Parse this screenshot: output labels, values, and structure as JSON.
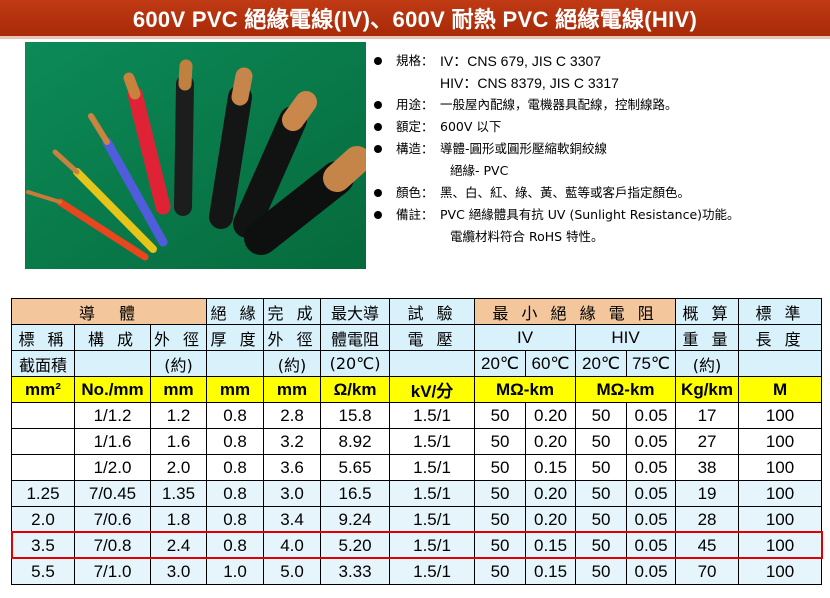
{
  "title": "600V PVC 絕緣電線(IV)、600V  耐熱 PVC 絕緣電線(HIV)",
  "specs": [
    {
      "key": "規格：",
      "value": "IV：CNS 679, JIS C 3307"
    },
    {
      "key": "",
      "value": "HIV：CNS 8379, JIS C 3317"
    },
    {
      "key": "用途：",
      "value": "一般屋內配線，電機器具配線，控制線路。"
    },
    {
      "key": "額定：",
      "value": "600V 以下"
    },
    {
      "key": "構造：",
      "value": "導體-圓形或圓形壓縮軟銅絞線"
    },
    {
      "key": "",
      "value": "絕緣- PVC"
    },
    {
      "key": "顏色：",
      "value": "黑、白、紅、綠、黃、藍等或客戶指定顏色。"
    },
    {
      "key": "備註：",
      "value": "PVC 絕緣體具有抗 UV (Sunlight Resistance)功能。"
    },
    {
      "key": "",
      "value": "電纜材料符合 RoHS 特性。"
    }
  ],
  "table": {
    "h_conductor": "導　體",
    "h_insulation": "絕 緣",
    "h_finished": "完 成",
    "h_maxcond": "最大導",
    "h_test": "試 驗",
    "h_minres": "最 小 絕 緣 電 阻",
    "h_weight": "概 算",
    "h_length": "標 準",
    "h_nominal": "標 稱",
    "h_construct": "構 成",
    "h_od": "外 徑",
    "h_thickness": "厚 度",
    "h_finished_od": "外 徑",
    "h_res20": "體電阻",
    "h_voltage": "電 壓",
    "h_iv": "IV",
    "h_hiv": "HIV",
    "h_weight2": "重 量",
    "h_length2": "長 度",
    "h_area": "截面積",
    "h_approx1": "(約)",
    "h_approx2": "(約)",
    "h_20c": "(20℃)",
    "h_iv20": "20℃",
    "h_iv60": "60℃",
    "h_hiv20": "20℃",
    "h_hiv75": "75℃",
    "h_approx3": "(約)",
    "units": [
      "mm²",
      "No./mm",
      "mm",
      "mm",
      "mm",
      "Ω/km",
      "kV/分",
      "MΩ-km",
      "MΩ-km",
      "Kg/km",
      "M"
    ],
    "rows": [
      [
        "",
        "1/1.2",
        "1.2",
        "0.8",
        "2.8",
        "15.8",
        "1.5/1",
        "50",
        "0.20",
        "50",
        "0.05",
        "17",
        "100"
      ],
      [
        "",
        "1/1.6",
        "1.6",
        "0.8",
        "3.2",
        "8.92",
        "1.5/1",
        "50",
        "0.20",
        "50",
        "0.05",
        "27",
        "100"
      ],
      [
        "",
        "1/2.0",
        "2.0",
        "0.8",
        "3.6",
        "5.65",
        "1.5/1",
        "50",
        "0.15",
        "50",
        "0.05",
        "38",
        "100"
      ],
      [
        "1.25",
        "7/0.45",
        "1.35",
        "0.8",
        "3.0",
        "16.5",
        "1.5/1",
        "50",
        "0.20",
        "50",
        "0.05",
        "19",
        "100"
      ],
      [
        "2.0",
        "7/0.6",
        "1.8",
        "0.8",
        "3.4",
        "9.24",
        "1.5/1",
        "50",
        "0.20",
        "50",
        "0.05",
        "28",
        "100"
      ],
      [
        "3.5",
        "7/0.8",
        "2.4",
        "0.8",
        "4.0",
        "5.20",
        "1.5/1",
        "50",
        "0.15",
        "50",
        "0.05",
        "45",
        "100"
      ],
      [
        "5.5",
        "7/1.0",
        "3.0",
        "1.0",
        "5.0",
        "3.33",
        "1.5/1",
        "50",
        "0.15",
        "50",
        "0.05",
        "70",
        "100"
      ]
    ]
  }
}
